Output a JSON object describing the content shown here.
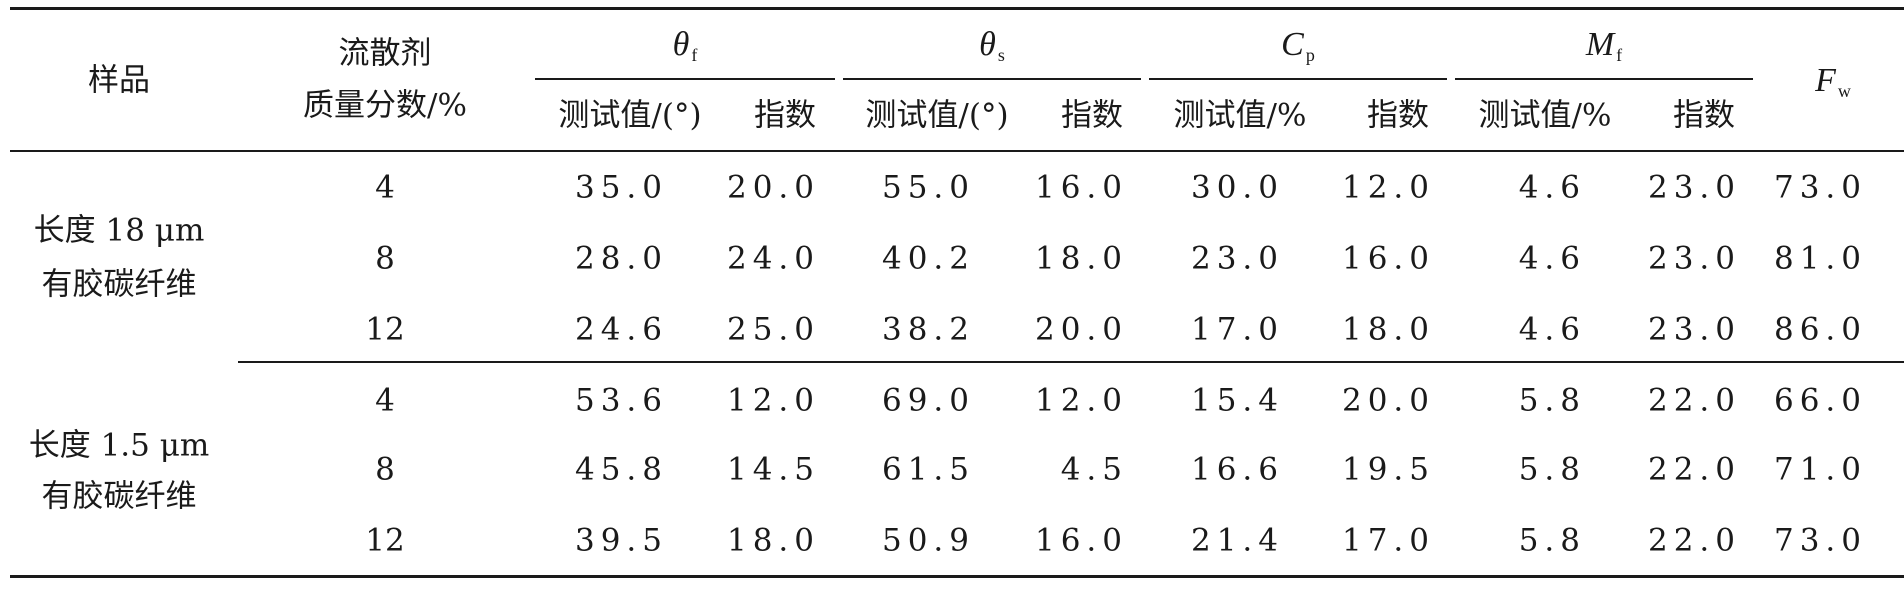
{
  "header": {
    "sample": "样品",
    "dispersant_line1": "流散剂",
    "dispersant_line2": "质量分数/%",
    "groups": [
      {
        "symbol": "θ",
        "sub": "f",
        "measured": "测试值/(°)",
        "index": "指数"
      },
      {
        "symbol": "θ",
        "sub": "s",
        "measured": "测试值/(°)",
        "index": "指数"
      },
      {
        "symbol": "C",
        "sub": "p",
        "measured": "测试值/%",
        "index": "指数"
      },
      {
        "symbol": "M",
        "sub": "f",
        "measured": "测试值/%",
        "index": "指数"
      }
    ],
    "fw": {
      "symbol": "F",
      "sub": "w"
    }
  },
  "samples": [
    {
      "line1": "长度 18 μm",
      "line2": "有胶碳纤维"
    },
    {
      "line1": "长度 1.5 μm",
      "line2": "有胶碳纤维"
    }
  ],
  "rows": [
    [
      "4",
      "35.0",
      "20.0",
      "55.0",
      "16.0",
      "30.0",
      "12.0",
      "4.6",
      "23.0",
      "73.0"
    ],
    [
      "8",
      "28.0",
      "24.0",
      "40.2",
      "18.0",
      "23.0",
      "16.0",
      "4.6",
      "23.0",
      "81.0"
    ],
    [
      "12",
      "24.6",
      "25.0",
      "38.2",
      "20.0",
      "17.0",
      "18.0",
      "4.6",
      "23.0",
      "86.0"
    ],
    [
      "4",
      "53.6",
      "12.0",
      "69.0",
      "12.0",
      "15.4",
      "20.0",
      "5.8",
      "22.0",
      "66.0"
    ],
    [
      "8",
      "45.8",
      "14.5",
      "61.5",
      "4.5",
      "16.6",
      "19.5",
      "5.8",
      "22.0",
      "71.0"
    ],
    [
      "12",
      "39.5",
      "18.0",
      "50.9",
      "16.0",
      "21.4",
      "17.0",
      "5.8",
      "22.0",
      "73.0"
    ]
  ]
}
